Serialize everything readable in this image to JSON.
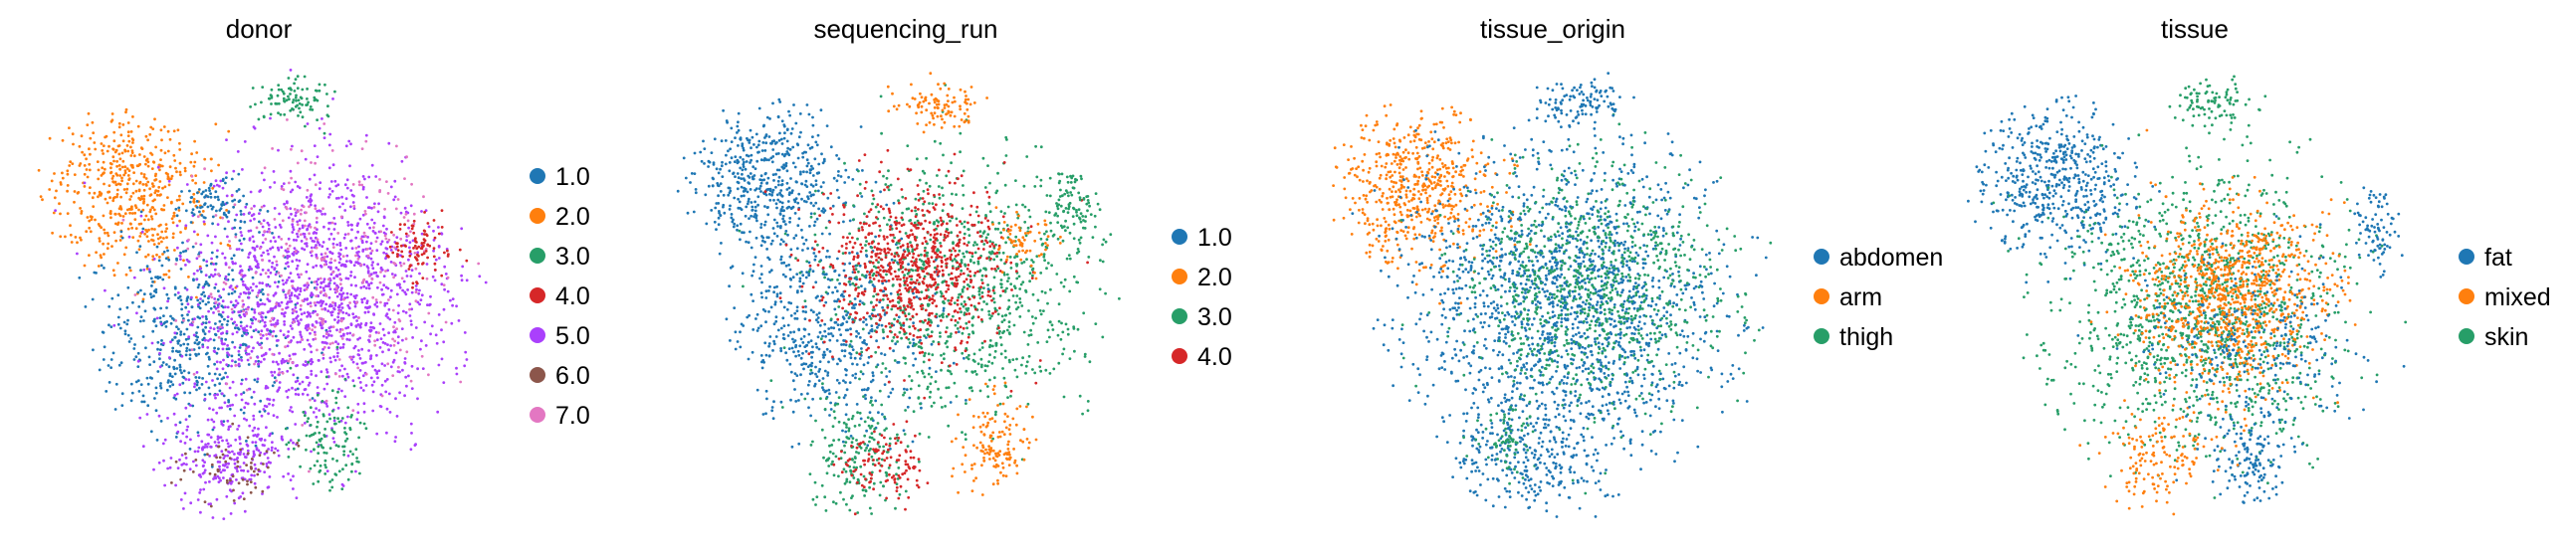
{
  "chart_data": [
    {
      "type": "scatter",
      "title": "donor",
      "xlabel": "",
      "ylabel": "",
      "legend_placement": "right",
      "grid": false,
      "series": [
        {
          "name": "1.0",
          "color": "#1f77b4"
        },
        {
          "name": "2.0",
          "color": "#ff7f0e"
        },
        {
          "name": "3.0",
          "color": "#279e68"
        },
        {
          "name": "4.0",
          "color": "#d62728"
        },
        {
          "name": "5.0",
          "color": "#aa40fc"
        },
        {
          "name": "6.0",
          "color": "#8c564b"
        },
        {
          "name": "7.0",
          "color": "#e377c2"
        }
      ],
      "clusters": [
        {
          "series": 1,
          "cx": 0.22,
          "cy": 0.28,
          "rx": 0.17,
          "ry": 0.17,
          "n": 520
        },
        {
          "series": 0,
          "cx": 0.35,
          "cy": 0.58,
          "rx": 0.22,
          "ry": 0.22,
          "n": 520
        },
        {
          "series": 4,
          "cx": 0.62,
          "cy": 0.5,
          "rx": 0.3,
          "ry": 0.3,
          "n": 1500
        },
        {
          "series": 6,
          "cx": 0.64,
          "cy": 0.46,
          "rx": 0.28,
          "ry": 0.28,
          "n": 320
        },
        {
          "series": 4,
          "cx": 0.42,
          "cy": 0.86,
          "rx": 0.14,
          "ry": 0.13,
          "n": 260
        },
        {
          "series": 2,
          "cx": 0.57,
          "cy": 0.07,
          "rx": 0.1,
          "ry": 0.05,
          "n": 90
        },
        {
          "series": 2,
          "cx": 0.66,
          "cy": 0.82,
          "rx": 0.09,
          "ry": 0.12,
          "n": 120
        },
        {
          "series": 3,
          "cx": 0.85,
          "cy": 0.4,
          "rx": 0.07,
          "ry": 0.07,
          "n": 90
        },
        {
          "series": 5,
          "cx": 0.44,
          "cy": 0.88,
          "rx": 0.11,
          "ry": 0.08,
          "n": 60
        },
        {
          "series": 0,
          "cx": 0.4,
          "cy": 0.3,
          "rx": 0.08,
          "ry": 0.06,
          "n": 80
        }
      ]
    },
    {
      "type": "scatter",
      "title": "sequencing_run",
      "xlabel": "",
      "ylabel": "",
      "legend_placement": "right",
      "grid": false,
      "series": [
        {
          "name": "1.0",
          "color": "#1f77b4"
        },
        {
          "name": "2.0",
          "color": "#ff7f0e"
        },
        {
          "name": "3.0",
          "color": "#279e68"
        },
        {
          "name": "4.0",
          "color": "#d62728"
        }
      ],
      "clusters": [
        {
          "series": 0,
          "cx": 0.2,
          "cy": 0.25,
          "rx": 0.17,
          "ry": 0.17,
          "n": 520
        },
        {
          "series": 0,
          "cx": 0.33,
          "cy": 0.58,
          "rx": 0.22,
          "ry": 0.22,
          "n": 560
        },
        {
          "series": 2,
          "cx": 0.62,
          "cy": 0.48,
          "rx": 0.29,
          "ry": 0.29,
          "n": 900
        },
        {
          "series": 3,
          "cx": 0.52,
          "cy": 0.44,
          "rx": 0.2,
          "ry": 0.18,
          "n": 750
        },
        {
          "series": 1,
          "cx": 0.58,
          "cy": 0.08,
          "rx": 0.1,
          "ry": 0.05,
          "n": 100
        },
        {
          "series": 1,
          "cx": 0.7,
          "cy": 0.84,
          "rx": 0.08,
          "ry": 0.11,
          "n": 140
        },
        {
          "series": 1,
          "cx": 0.76,
          "cy": 0.38,
          "rx": 0.06,
          "ry": 0.06,
          "n": 60
        },
        {
          "series": 2,
          "cx": 0.4,
          "cy": 0.86,
          "rx": 0.12,
          "ry": 0.12,
          "n": 180
        },
        {
          "series": 3,
          "cx": 0.45,
          "cy": 0.88,
          "rx": 0.1,
          "ry": 0.08,
          "n": 110
        },
        {
          "series": 2,
          "cx": 0.87,
          "cy": 0.3,
          "rx": 0.06,
          "ry": 0.1,
          "n": 90
        }
      ]
    },
    {
      "type": "scatter",
      "title": "tissue_origin",
      "xlabel": "",
      "ylabel": "",
      "legend_placement": "right",
      "grid": false,
      "series": [
        {
          "name": "abdomen",
          "color": "#1f77b4"
        },
        {
          "name": "arm",
          "color": "#ff7f0e"
        },
        {
          "name": "thigh",
          "color": "#279e68"
        }
      ],
      "clusters": [
        {
          "series": 1,
          "cx": 0.2,
          "cy": 0.27,
          "rx": 0.17,
          "ry": 0.17,
          "n": 560
        },
        {
          "series": 0,
          "cx": 0.53,
          "cy": 0.52,
          "rx": 0.34,
          "ry": 0.34,
          "n": 1700
        },
        {
          "series": 2,
          "cx": 0.58,
          "cy": 0.48,
          "rx": 0.28,
          "ry": 0.28,
          "n": 900
        },
        {
          "series": 0,
          "cx": 0.45,
          "cy": 0.86,
          "rx": 0.16,
          "ry": 0.12,
          "n": 260
        },
        {
          "series": 0,
          "cx": 0.55,
          "cy": 0.08,
          "rx": 0.1,
          "ry": 0.05,
          "n": 100
        },
        {
          "series": 2,
          "cx": 0.4,
          "cy": 0.82,
          "rx": 0.06,
          "ry": 0.07,
          "n": 60
        }
      ]
    },
    {
      "type": "scatter",
      "title": "tissue",
      "xlabel": "",
      "ylabel": "",
      "legend_placement": "right",
      "grid": false,
      "series": [
        {
          "name": "fat",
          "color": "#1f77b4"
        },
        {
          "name": "mixed",
          "color": "#ff7f0e"
        },
        {
          "name": "skin",
          "color": "#279e68"
        }
      ],
      "clusters": [
        {
          "series": 0,
          "cx": 0.2,
          "cy": 0.25,
          "rx": 0.17,
          "ry": 0.17,
          "n": 520
        },
        {
          "series": 2,
          "cx": 0.52,
          "cy": 0.54,
          "rx": 0.32,
          "ry": 0.32,
          "n": 1300
        },
        {
          "series": 1,
          "cx": 0.58,
          "cy": 0.5,
          "rx": 0.2,
          "ry": 0.2,
          "n": 950
        },
        {
          "series": 0,
          "cx": 0.62,
          "cy": 0.62,
          "rx": 0.24,
          "ry": 0.2,
          "n": 280
        },
        {
          "series": 0,
          "cx": 0.62,
          "cy": 0.86,
          "rx": 0.08,
          "ry": 0.1,
          "n": 130
        },
        {
          "series": 2,
          "cx": 0.54,
          "cy": 0.08,
          "rx": 0.1,
          "ry": 0.05,
          "n": 90
        },
        {
          "series": 1,
          "cx": 0.42,
          "cy": 0.86,
          "rx": 0.12,
          "ry": 0.1,
          "n": 140
        },
        {
          "series": 0,
          "cx": 0.9,
          "cy": 0.35,
          "rx": 0.05,
          "ry": 0.1,
          "n": 80
        }
      ]
    }
  ]
}
